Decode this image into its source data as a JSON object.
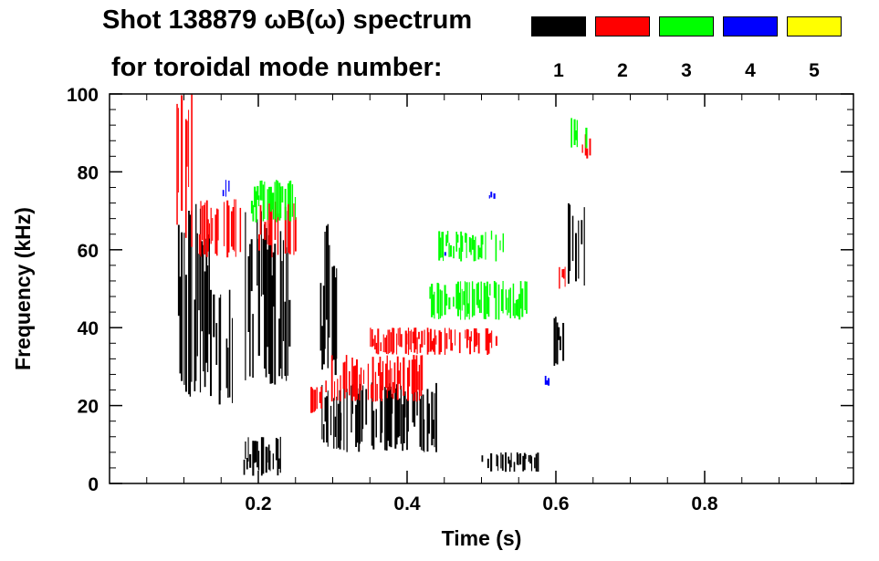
{
  "title_line1": "Shot 138879 ωB(ω) spectrum",
  "title_line2": "for toroidal mode number:",
  "legend": [
    {
      "label": "1",
      "color": "#000000"
    },
    {
      "label": "2",
      "color": "#ff0000"
    },
    {
      "label": "3",
      "color": "#00ff00"
    },
    {
      "label": "4",
      "color": "#0000ff"
    },
    {
      "label": "5",
      "color": "#ffff00"
    }
  ],
  "chart_data": {
    "type": "heatmap",
    "title": "Shot 138879 ωB(ω) spectrum",
    "xlabel": "Time (s)",
    "ylabel": "Frequency (kHz)",
    "xlim": [
      0.0,
      1.0
    ],
    "ylim": [
      0,
      100
    ],
    "xticks": [
      0.2,
      0.4,
      0.6,
      0.8
    ],
    "xtick_labels": [
      "0.2",
      "0.4",
      "0.6",
      "0.8"
    ],
    "yticks": [
      0,
      20,
      40,
      60,
      80,
      100
    ],
    "ytick_labels": [
      "0",
      "20",
      "40",
      "60",
      "80",
      "100"
    ],
    "grid": false,
    "legend_placement": "top-right",
    "series": [
      {
        "name": "n=1",
        "color": "#000000",
        "blobs": [
          {
            "t": [
              0.09,
              0.135
            ],
            "f": [
              22,
              72
            ]
          },
          {
            "t": [
              0.135,
              0.165
            ],
            "f": [
              20,
              50
            ]
          },
          {
            "t": [
              0.18,
              0.235
            ],
            "f": [
              2,
              12
            ]
          },
          {
            "t": [
              0.18,
              0.245
            ],
            "f": [
              25,
              70
            ]
          },
          {
            "t": [
              0.285,
              0.44
            ],
            "f": [
              8,
              26
            ]
          },
          {
            "t": [
              0.283,
              0.31
            ],
            "f": [
              25,
              67
            ]
          },
          {
            "t": [
              0.5,
              0.575
            ],
            "f": [
              3,
              8
            ]
          },
          {
            "t": [
              0.595,
              0.61
            ],
            "f": [
              30,
              43
            ]
          },
          {
            "t": [
              0.616,
              0.638
            ],
            "f": [
              50,
              72
            ]
          }
        ]
      },
      {
        "name": "n=2",
        "color": "#ff0000",
        "blobs": [
          {
            "t": [
              0.09,
              0.11
            ],
            "f": [
              60,
              100
            ]
          },
          {
            "t": [
              0.12,
              0.175
            ],
            "f": [
              58,
              73
            ]
          },
          {
            "t": [
              0.2,
              0.255
            ],
            "f": [
              58,
              73
            ]
          },
          {
            "t": [
              0.27,
              0.285
            ],
            "f": [
              18,
              25
            ]
          },
          {
            "t": [
              0.29,
              0.42
            ],
            "f": [
              21,
              33
            ]
          },
          {
            "t": [
              0.35,
              0.52
            ],
            "f": [
              33,
              40
            ]
          },
          {
            "t": [
              0.6,
              0.612
            ],
            "f": [
              50,
              56
            ]
          },
          {
            "t": [
              0.635,
              0.645
            ],
            "f": [
              83,
              90
            ]
          }
        ]
      },
      {
        "name": "n=3",
        "color": "#00ff00",
        "blobs": [
          {
            "t": [
              0.19,
              0.25
            ],
            "f": [
              67,
              78
            ]
          },
          {
            "t": [
              0.43,
              0.56
            ],
            "f": [
              42,
              52
            ]
          },
          {
            "t": [
              0.44,
              0.53
            ],
            "f": [
              57,
              65
            ]
          },
          {
            "t": [
              0.62,
              0.64
            ],
            "f": [
              86,
              94
            ]
          }
        ]
      },
      {
        "name": "n=4",
        "color": "#0000ff",
        "blobs": [
          {
            "t": [
              0.15,
              0.16
            ],
            "f": [
              73,
              78
            ]
          },
          {
            "t": [
              0.45,
              0.455
            ],
            "f": [
              58,
              60
            ]
          },
          {
            "t": [
              0.51,
              0.52
            ],
            "f": [
              73,
              75
            ]
          },
          {
            "t": [
              0.585,
              0.59
            ],
            "f": [
              25,
              28
            ]
          }
        ]
      },
      {
        "name": "n=5",
        "color": "#ffff00",
        "blobs": []
      }
    ]
  }
}
